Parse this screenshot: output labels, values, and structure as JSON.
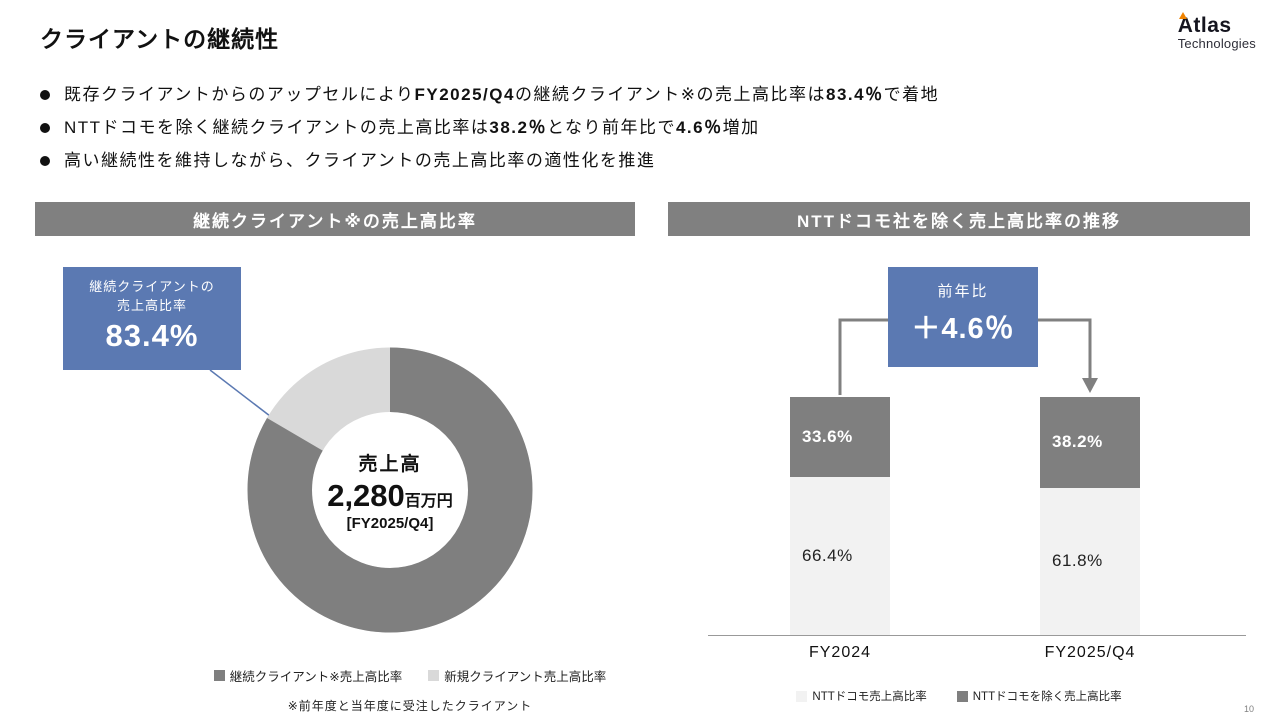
{
  "page": {
    "title": "クライアントの継続性",
    "page_number": "10",
    "logo": {
      "name": "Atlas",
      "sub": "Technologies",
      "accent_color": "#f08300"
    }
  },
  "bullets": [
    {
      "segments": [
        {
          "text": "既存クライアントからのアップセルにより",
          "bold": false
        },
        {
          "text": "FY2025/Q4",
          "bold": true
        },
        {
          "text": "の継続クライアント※の売上高比率は",
          "bold": false
        },
        {
          "text": "83.4％",
          "bold": true
        },
        {
          "text": "で着地",
          "bold": false
        }
      ]
    },
    {
      "segments": [
        {
          "text": "NTTドコモを除く継続クライアントの売上高比率は",
          "bold": false
        },
        {
          "text": "38.2％",
          "bold": true
        },
        {
          "text": "となり前年比で",
          "bold": false
        },
        {
          "text": "4.6％",
          "bold": true
        },
        {
          "text": "増加",
          "bold": false
        }
      ]
    },
    {
      "segments": [
        {
          "text": "高い継続性を維持しながら、クライアントの売上高比率の適性化を推進",
          "bold": false
        }
      ]
    }
  ],
  "left_panel": {
    "header": "継続クライアント※の売上高比率",
    "callout": {
      "line1": "継続クライアントの",
      "line2": "売上高比率",
      "value": "83.4%"
    },
    "donut_center": {
      "label": "売上高",
      "value": "2,280",
      "unit": "百万円",
      "period": "[FY2025/Q4]"
    },
    "legend": [
      {
        "label": "継続クライアント※売上高比率",
        "color": "#7f7f7f"
      },
      {
        "label": "新規クライアント売上高比率",
        "color": "#d9d9d9"
      }
    ],
    "footnote": "※前年度と当年度に受注したクライアント"
  },
  "right_panel": {
    "header": "NTTドコモ社を除く売上高比率の推移",
    "callout": {
      "label": "前年比",
      "value": "＋4.6％"
    },
    "legend": [
      {
        "label": "NTTドコモ売上高比率",
        "color": "#f2f2f2"
      },
      {
        "label": "NTTドコモを除く売上高比率",
        "color": "#7f7f7f"
      }
    ]
  },
  "chart_data": [
    {
      "type": "pie",
      "donut": true,
      "title": "継続クライアント※の売上高比率",
      "labels": [
        "継続クライアント※売上高比率",
        "新規クライアント売上高比率"
      ],
      "values": [
        83.4,
        16.6
      ],
      "colors": [
        "#7f7f7f",
        "#d9d9d9"
      ],
      "center_text": "売上高 2,280百万円 [FY2025/Q4]"
    },
    {
      "type": "bar",
      "stacked": true,
      "title": "NTTドコモ社を除く売上高比率の推移",
      "categories": [
        "FY2024",
        "FY2025/Q4"
      ],
      "series": [
        {
          "name": "NTTドコモ売上高比率",
          "values": [
            66.4,
            61.8
          ],
          "color": "#f2f2f2"
        },
        {
          "name": "NTTドコモを除く売上高比率",
          "values": [
            33.6,
            38.2
          ],
          "color": "#7f7f7f"
        }
      ],
      "ylim": [
        0,
        100
      ],
      "annotation": {
        "label": "前年比",
        "value": "+4.6%"
      },
      "legend_position": "bottom"
    }
  ],
  "colors": {
    "accent_blue": "#5b79b2",
    "header_gray": "#808080",
    "dark_gray": "#7f7f7f",
    "light_gray": "#d9d9d9",
    "bar_light": "#f2f2f2"
  }
}
